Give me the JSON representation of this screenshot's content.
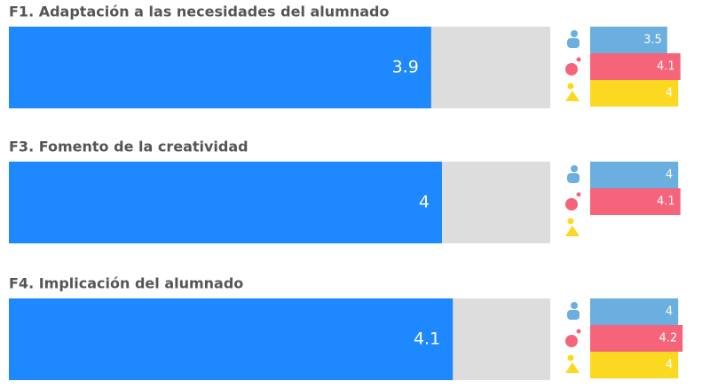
{
  "chart_data": [
    {
      "type": "bar",
      "title": "F1. Adaptación a las necesidades del alumnado",
      "value": 3.9,
      "color": "#1e88ff",
      "xlim": [
        0,
        5
      ],
      "groups": [
        {
          "color": "#6aafdf",
          "value": 3.5
        },
        {
          "color": "#f5647a",
          "value": 4.1
        },
        {
          "color": "#fbd921",
          "value": 4
        }
      ]
    },
    {
      "type": "bar",
      "title": "F3. Fomento de la creatividad",
      "value": 4,
      "color": "#1e88ff",
      "xlim": [
        0,
        5
      ],
      "groups": [
        {
          "color": "#6aafdf",
          "value": 4
        },
        {
          "color": "#f5647a",
          "value": 4.1
        },
        {
          "color": "#fbd921",
          "value": null
        }
      ]
    },
    {
      "type": "bar",
      "title": "F4. Implicación del alumnado",
      "value": 4.1,
      "color": "#1e88ff",
      "xlim": [
        0,
        5
      ],
      "groups": [
        {
          "color": "#6aafdf",
          "value": 4
        },
        {
          "color": "#f5647a",
          "value": 4.2
        },
        {
          "color": "#fbd921",
          "value": 4
        }
      ]
    }
  ]
}
